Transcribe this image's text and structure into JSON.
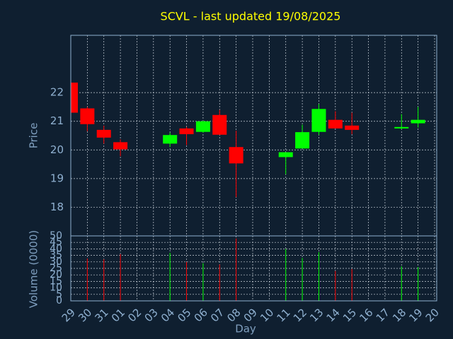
{
  "chart_data": {
    "type": "candlestick",
    "title": "SCVL - last updated 19/08/2025",
    "ylabel": "Price",
    "y2label": "Volume (0000)",
    "xlabel": "Day",
    "categories": [
      "29",
      "30",
      "31",
      "01",
      "02",
      "03",
      "04",
      "05",
      "06",
      "07",
      "08",
      "09",
      "10",
      "11",
      "12",
      "13",
      "14",
      "15",
      "16",
      "17",
      "18",
      "19",
      "20"
    ],
    "open": [
      22.35,
      21.45,
      20.7,
      20.27,
      null,
      null,
      20.22,
      20.75,
      20.63,
      21.22,
      20.1,
      null,
      null,
      19.75,
      20.05,
      20.63,
      21.05,
      20.85,
      null,
      null,
      20.75,
      20.93,
      null
    ],
    "high": [
      22.4,
      21.5,
      20.85,
      20.37,
      null,
      null,
      20.6,
      20.8,
      21.02,
      21.4,
      20.67,
      null,
      null,
      19.92,
      20.88,
      21.6,
      21.35,
      21.3,
      null,
      null,
      21.25,
      21.5,
      null
    ],
    "low": [
      21.29,
      20.65,
      20.22,
      19.78,
      null,
      null,
      20.1,
      20.17,
      20.6,
      20.53,
      18.35,
      null,
      null,
      19.15,
      20.05,
      20.53,
      20.75,
      20.55,
      null,
      null,
      20.72,
      20.78,
      null
    ],
    "close": [
      21.3,
      20.9,
      20.43,
      20.02,
      null,
      null,
      20.52,
      20.55,
      21.0,
      20.53,
      19.53,
      null,
      null,
      19.92,
      20.62,
      21.43,
      20.75,
      20.7,
      null,
      null,
      20.8,
      21.05,
      null
    ],
    "volume": [
      null,
      32.6,
      32,
      36,
      null,
      null,
      37,
      30,
      29,
      28,
      48,
      null,
      null,
      40,
      33,
      37.5,
      23,
      24.5,
      null,
      null,
      26.6,
      26,
      null
    ],
    "up_color": "#00ff00",
    "down_color": "#ff0000",
    "ylim": [
      17,
      24
    ],
    "yticks": [
      18,
      19,
      20,
      21,
      22
    ],
    "y2lim": [
      0,
      50
    ],
    "y2ticks": [
      0,
      5,
      10,
      15,
      20,
      25,
      30,
      35,
      40,
      45,
      50
    ],
    "grid": true
  }
}
